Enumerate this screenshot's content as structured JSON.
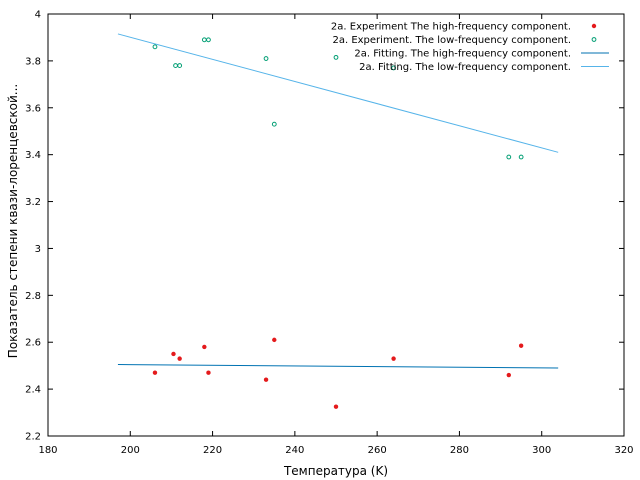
{
  "chart_data": {
    "type": "scatter",
    "xlabel": "Температура (K)",
    "ylabel": "Показатель степени квази-лоренцевской...",
    "xlim": [
      180,
      320
    ],
    "ylim": [
      2.2,
      4.0
    ],
    "x_ticks": [
      "180",
      "200",
      "220",
      "240",
      "260",
      "280",
      "300",
      "320"
    ],
    "y_ticks": [
      "2.2",
      "2.4",
      "2.6",
      "2.8",
      "3",
      "3.2",
      "3.4",
      "3.6",
      "3.8",
      "4"
    ],
    "grid": false,
    "legend_position": "top-right",
    "series": [
      {
        "name": "2a. Experiment The high-frequency component.",
        "kind": "points",
        "marker": "filled-circle",
        "color": "#e41a1c",
        "points": [
          [
            206,
            2.47
          ],
          [
            210.5,
            2.55
          ],
          [
            212,
            2.53
          ],
          [
            218,
            2.58
          ],
          [
            219,
            2.47
          ],
          [
            233,
            2.44
          ],
          [
            235,
            2.61
          ],
          [
            250,
            2.325
          ],
          [
            264,
            2.53
          ],
          [
            292,
            2.46
          ],
          [
            295,
            2.585
          ]
        ]
      },
      {
        "name": "2a. Experiment. The low-frequency component.",
        "kind": "points",
        "marker": "open-circle",
        "color": "#009e73",
        "points": [
          [
            206,
            3.86
          ],
          [
            211,
            3.78
          ],
          [
            212,
            3.78
          ],
          [
            218,
            3.89
          ],
          [
            219,
            3.89
          ],
          [
            233,
            3.81
          ],
          [
            235,
            3.53
          ],
          [
            250,
            3.815
          ],
          [
            264,
            3.77
          ],
          [
            292,
            3.39
          ],
          [
            295,
            3.39
          ]
        ]
      },
      {
        "name": "2a. Fitting. The high-frequency component.",
        "kind": "line",
        "color": "#0072b2",
        "points": [
          [
            197,
            2.505
          ],
          [
            304,
            2.49
          ]
        ]
      },
      {
        "name": "2a. Fitting. The low-frequency component.",
        "kind": "line",
        "color": "#56b4e9",
        "points": [
          [
            197,
            3.915
          ],
          [
            304,
            3.41
          ]
        ]
      }
    ]
  }
}
